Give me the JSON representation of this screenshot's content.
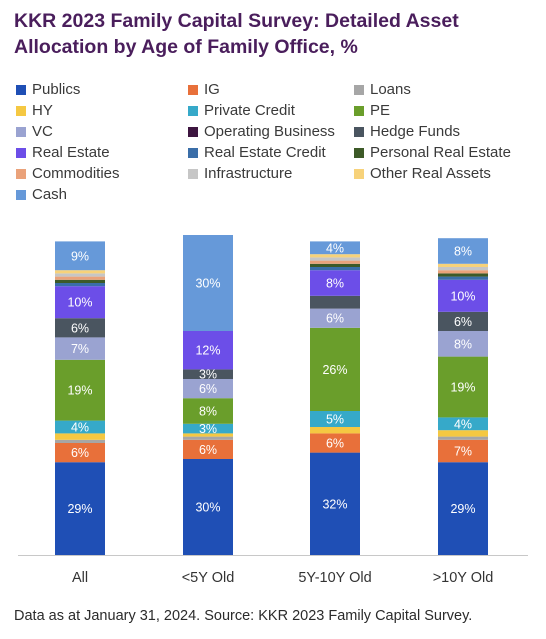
{
  "title": "KKR 2023 Family Capital Survey: Detailed Asset Allocation by Age of Family Office, %",
  "title_lines": [
    "KKR 2023 Family Capital Survey: Detailed Asset",
    "Allocation by Age of Family Office, %"
  ],
  "footnote": "Data as at January 31, 2024. Source: KKR 2023 Family Capital Survey.",
  "chart_data": {
    "type": "bar",
    "stacked": true,
    "categories": [
      "All",
      "<5Y Old",
      "5Y-10Y Old",
      ">10Y Old"
    ],
    "ylim": [
      0,
      100
    ],
    "grid": false,
    "legend_position": "top",
    "series": [
      {
        "name": "Publics",
        "color": "#1f4fb5",
        "values": [
          29,
          30,
          32,
          29
        ],
        "labels": [
          "29%",
          "30%",
          "32%",
          "29%"
        ]
      },
      {
        "name": "IG",
        "color": "#e8703a",
        "values": [
          6,
          6,
          6,
          7
        ],
        "labels": [
          "6%",
          "6%",
          "6%",
          "7%"
        ]
      },
      {
        "name": "Loans",
        "color": "#a6a6a6",
        "values": [
          1,
          1,
          0,
          1
        ],
        "labels": [
          "",
          "",
          "",
          ""
        ]
      },
      {
        "name": "HY",
        "color": "#f5c842",
        "values": [
          2,
          1,
          2,
          2
        ],
        "labels": [
          "",
          "",
          "",
          ""
        ]
      },
      {
        "name": "Private Credit",
        "color": "#36a9c9",
        "values": [
          4,
          3,
          5,
          4
        ],
        "labels": [
          "4%",
          "3%",
          "5%",
          "4%"
        ]
      },
      {
        "name": "PE",
        "color": "#6a9e2b",
        "values": [
          19,
          8,
          26,
          19
        ],
        "labels": [
          "19%",
          "8%",
          "26%",
          "19%"
        ]
      },
      {
        "name": "VC",
        "color": "#9aa3d1",
        "values": [
          7,
          6,
          6,
          8
        ],
        "labels": [
          "7%",
          "6%",
          "6%",
          "8%"
        ]
      },
      {
        "name": "Operating Business",
        "color": "#3d1540",
        "values": [
          0,
          0,
          0,
          0
        ],
        "labels": [
          "",
          "",
          "",
          ""
        ]
      },
      {
        "name": "Hedge Funds",
        "color": "#4a5560",
        "values": [
          6,
          3,
          4,
          6
        ],
        "labels": [
          "6%",
          "3%",
          "",
          "6%"
        ]
      },
      {
        "name": "Real Estate",
        "color": "#6c4ee8",
        "values": [
          10,
          12,
          8,
          10
        ],
        "labels": [
          "10%",
          "12%",
          "8%",
          "10%"
        ]
      },
      {
        "name": "Real Estate Credit",
        "color": "#3a6ea8",
        "values": [
          1,
          0,
          1,
          1
        ],
        "labels": [
          "",
          "",
          "",
          ""
        ]
      },
      {
        "name": "Personal Real Estate",
        "color": "#3d5a28",
        "values": [
          1,
          0,
          1,
          1
        ],
        "labels": [
          "",
          "",
          "",
          ""
        ]
      },
      {
        "name": "Commodities",
        "color": "#eaa27a",
        "values": [
          1,
          0,
          1,
          1
        ],
        "labels": [
          "",
          "",
          "",
          ""
        ]
      },
      {
        "name": "Infrastructure",
        "color": "#c6c6c6",
        "values": [
          1,
          0,
          1,
          1
        ],
        "labels": [
          "",
          "",
          "",
          ""
        ]
      },
      {
        "name": "Other Real Assets",
        "color": "#f7d27a",
        "values": [
          1,
          0,
          1,
          1
        ],
        "labels": [
          "",
          "",
          "",
          ""
        ]
      },
      {
        "name": "Cash",
        "color": "#6699d9",
        "values": [
          9,
          30,
          4,
          8
        ],
        "labels": [
          "9%",
          "30%",
          "4%",
          "8%"
        ]
      }
    ]
  }
}
